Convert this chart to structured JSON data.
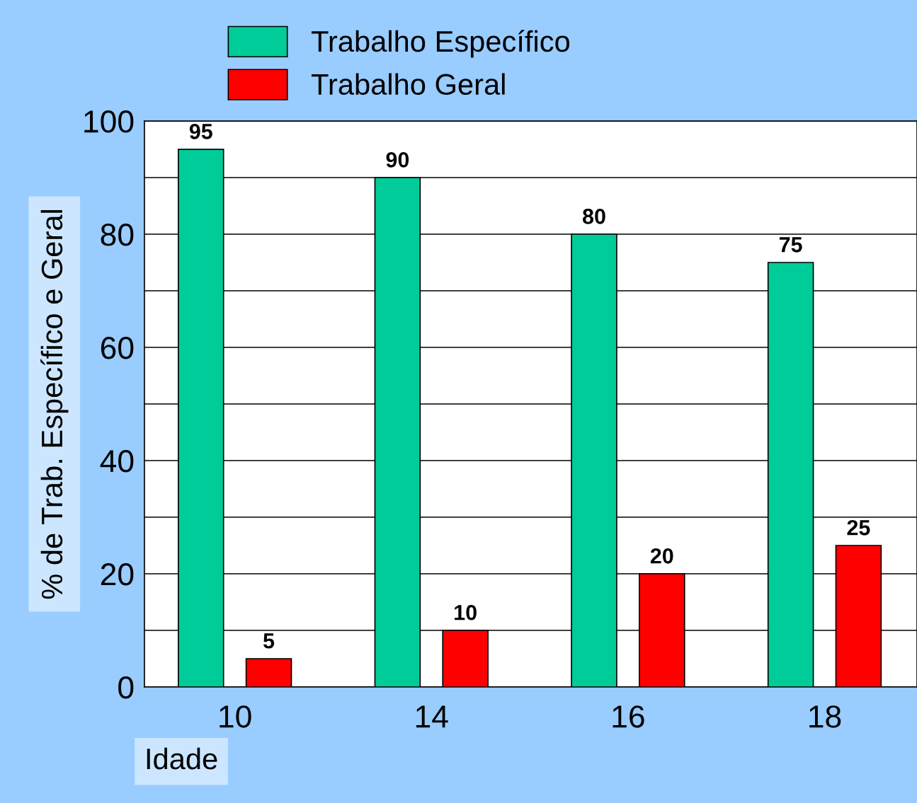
{
  "chart_data": {
    "type": "bar",
    "xlabel": "Idade",
    "ylabel": "% de Trab. Específico e Geral",
    "categories": [
      "10",
      "14",
      "16",
      "18"
    ],
    "series": [
      {
        "name": "Trabalho Específico",
        "color": "#00cc99",
        "values": [
          95,
          90,
          80,
          75
        ]
      },
      {
        "name": "Trabalho Geral",
        "color": "#ff0000",
        "values": [
          5,
          10,
          20,
          25
        ]
      }
    ],
    "ylim": [
      0,
      100
    ],
    "yticks": [
      0,
      {
        "value": 10,
        "label": null
      },
      20,
      {
        "value": 30,
        "label": null
      },
      40,
      {
        "value": 50,
        "label": null
      },
      60,
      {
        "value": 70,
        "label": null
      },
      80,
      {
        "value": 90,
        "label": null
      },
      100
    ],
    "grid": "y",
    "legend": "top",
    "data_labels": true
  }
}
